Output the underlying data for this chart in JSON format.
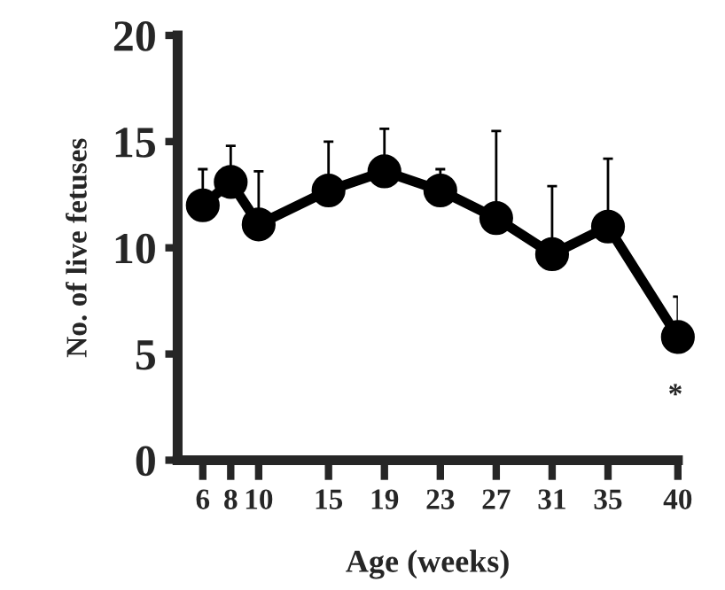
{
  "chart_data": {
    "type": "line",
    "xlabel": "Age (weeks)",
    "ylabel": "No. of live fetuses",
    "x": [
      6,
      8,
      10,
      15,
      19,
      23,
      27,
      31,
      35,
      40
    ],
    "series": [
      {
        "color": "#000000",
        "values": [
          12.0,
          13.1,
          11.1,
          12.7,
          13.6,
          12.7,
          11.4,
          9.7,
          11.0,
          5.8
        ],
        "errors": [
          [
            12.0,
            13.7
          ],
          [
            13.1,
            14.8
          ],
          [
            11.1,
            13.6
          ],
          [
            12.7,
            15.0
          ],
          [
            13.6,
            15.6
          ],
          [
            12.7,
            13.7
          ],
          [
            11.4,
            15.5
          ],
          [
            9.7,
            12.9
          ],
          [
            11.0,
            14.2
          ],
          [
            5.8,
            7.7
          ]
        ]
      }
    ],
    "xlim": [
      4.2,
      40
    ],
    "xticks": [
      6,
      8,
      10,
      15,
      19,
      23,
      27,
      31,
      35,
      40
    ],
    "ylim": [
      0,
      20
    ],
    "yticks": [
      0,
      5,
      10,
      15,
      20
    ],
    "annotations": [
      "*"
    ],
    "marker": "circle",
    "line_style": "solid",
    "grid": false,
    "legend": false
  }
}
